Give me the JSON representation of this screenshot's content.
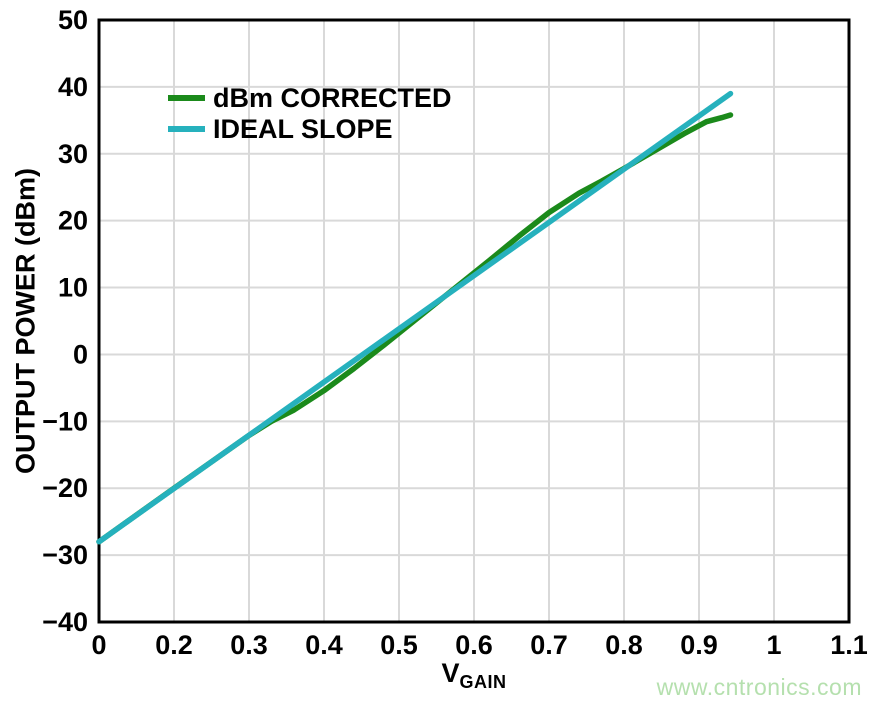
{
  "figure": {
    "watermark_text": "www.cntronics.com",
    "watermark_color": "#b5e0ae",
    "background": "#ffffff",
    "axis_border_color": "#000000",
    "grid_color": "#d9d9d9"
  },
  "chart_data": {
    "type": "line",
    "title": "",
    "xlabel_base": "V",
    "xlabel_sub": "GAIN",
    "ylabel": "OUTPUT POWER (dBm)",
    "x_tick_labels": [
      "0",
      "0.2",
      "0.3",
      "0.4",
      "0.5",
      "0.6",
      "0.7",
      "0.8",
      "0.9",
      "1",
      "1.1"
    ],
    "x_tick_values": [
      0,
      0.2,
      0.3,
      0.4,
      0.5,
      0.6,
      0.7,
      0.8,
      0.9,
      1.0,
      1.1
    ],
    "x_axis_note": "11 evenly spaced ticks; 0.1 label omitted so the first division spans 0 to 0.2",
    "y_tick_labels": [
      "50",
      "40",
      "30",
      "20",
      "10",
      "0",
      "−10",
      "−20",
      "−30",
      "−40"
    ],
    "y_tick_values": [
      50,
      40,
      30,
      20,
      10,
      0,
      -10,
      -20,
      -30,
      -40
    ],
    "ylim": [
      -40,
      50
    ],
    "grid": true,
    "legend_position": "top-left-inside",
    "series": [
      {
        "name": "dBm CORRECTED",
        "color": "#1b8a1b",
        "points": [
          [
            0,
            -28
          ],
          [
            0.2,
            -20
          ],
          [
            0.3,
            -12.1
          ],
          [
            0.33,
            -10.0
          ],
          [
            0.36,
            -8.3
          ],
          [
            0.4,
            -5.4
          ],
          [
            0.44,
            -2.1
          ],
          [
            0.48,
            1.4
          ],
          [
            0.52,
            5.0
          ],
          [
            0.57,
            9.5
          ],
          [
            0.62,
            14.0
          ],
          [
            0.66,
            17.7
          ],
          [
            0.7,
            21.2
          ],
          [
            0.74,
            24.1
          ],
          [
            0.77,
            25.9
          ],
          [
            0.8,
            27.8
          ],
          [
            0.84,
            30.4
          ],
          [
            0.88,
            33.0
          ],
          [
            0.91,
            34.8
          ],
          [
            0.93,
            35.4
          ],
          [
            0.942,
            35.8
          ]
        ]
      },
      {
        "name": "IDEAL SLOPE",
        "color": "#26b1bd",
        "points": [
          [
            0,
            -28
          ],
          [
            0.942,
            39
          ]
        ]
      }
    ]
  }
}
